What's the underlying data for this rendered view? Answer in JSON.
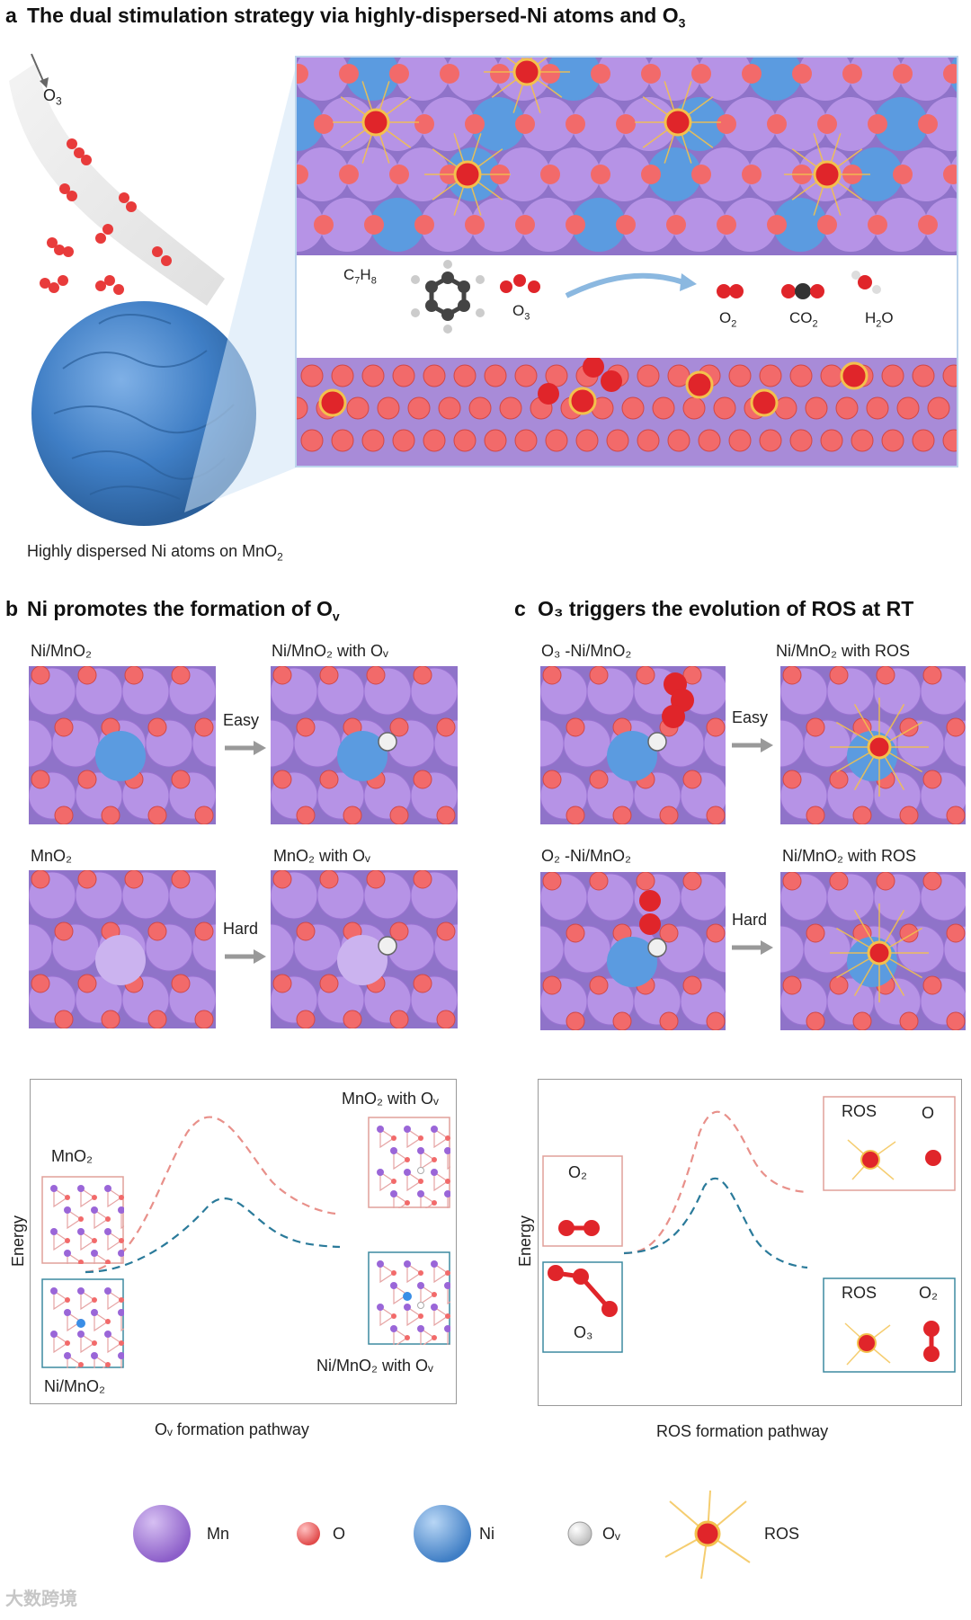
{
  "panel_a": {
    "letter": "a",
    "title": "The dual stimulation strategy via highly-dispersed-Ni atoms and O",
    "title_sub": "3",
    "o3_label": "O",
    "o3_sub": "3",
    "particle_caption": "Highly dispersed Ni atoms on MnO",
    "particle_caption_sub": "2",
    "molecules": [
      {
        "name": "C",
        "sub1": "7",
        "mid": "H",
        "sub2": "8"
      },
      {
        "name": "O",
        "sub": "3"
      },
      {
        "name": "O",
        "sub": "2"
      },
      {
        "name": "CO",
        "sub": "2"
      },
      {
        "name": "H",
        "sub": "2",
        "after": "O"
      }
    ]
  },
  "panel_b": {
    "letter": "b",
    "title": "Ni promotes the formation of O",
    "title_sub": "v",
    "tiles": {
      "t1": "Ni/MnO₂",
      "t2": "Ni/MnO₂ with Oᵥ",
      "t3": "MnO₂",
      "t4": "MnO₂ with Oᵥ"
    },
    "arrow_top": "Easy",
    "arrow_bottom": "Hard",
    "energy_axis": "Energy",
    "pathway": "Oᵥ formation pathway",
    "diagram_labels": {
      "mno2": "MnO₂",
      "ni_mno2": "Ni/MnO₂",
      "mno2_ov": "MnO₂ with Oᵥ",
      "ni_mno2_ov": "Ni/MnO₂ with Oᵥ"
    }
  },
  "panel_c": {
    "letter": "c",
    "title": "O₃ triggers the evolution of ROS at RT",
    "tiles": {
      "t1": "O₃ -Ni/MnO₂",
      "t2": "Ni/MnO₂ with ROS",
      "t3": "O₂ -Ni/MnO₂",
      "t4": "Ni/MnO₂ with ROS"
    },
    "arrow_top": "Easy",
    "arrow_bottom": "Hard",
    "energy_axis": "Energy",
    "pathway": "ROS formation pathway",
    "diagram_labels": {
      "o2": "O₂",
      "o3": "O₃",
      "ros1": "ROS",
      "o_atom": "O",
      "ros2": "ROS",
      "o2b": "O₂"
    }
  },
  "legend": [
    {
      "label": "Mn",
      "color": "#a77bd9"
    },
    {
      "label": "O",
      "color": "#f26a6a"
    },
    {
      "label": "Ni",
      "color": "#5b9be0"
    },
    {
      "label": "Oᵥ",
      "color": "#f2f2f2"
    },
    {
      "label": "ROS",
      "color": "#e3231c"
    }
  ],
  "colors": {
    "mn": "#a77bd9",
    "o": "#f26a6a",
    "ni": "#5b9be0",
    "ros": "#e3231c",
    "curve_red": "#e8908a",
    "curve_blue": "#2a7a9a",
    "box_red": "#e0a09a",
    "box_blue": "#3d8aa0"
  },
  "watermark": "大数跨境"
}
